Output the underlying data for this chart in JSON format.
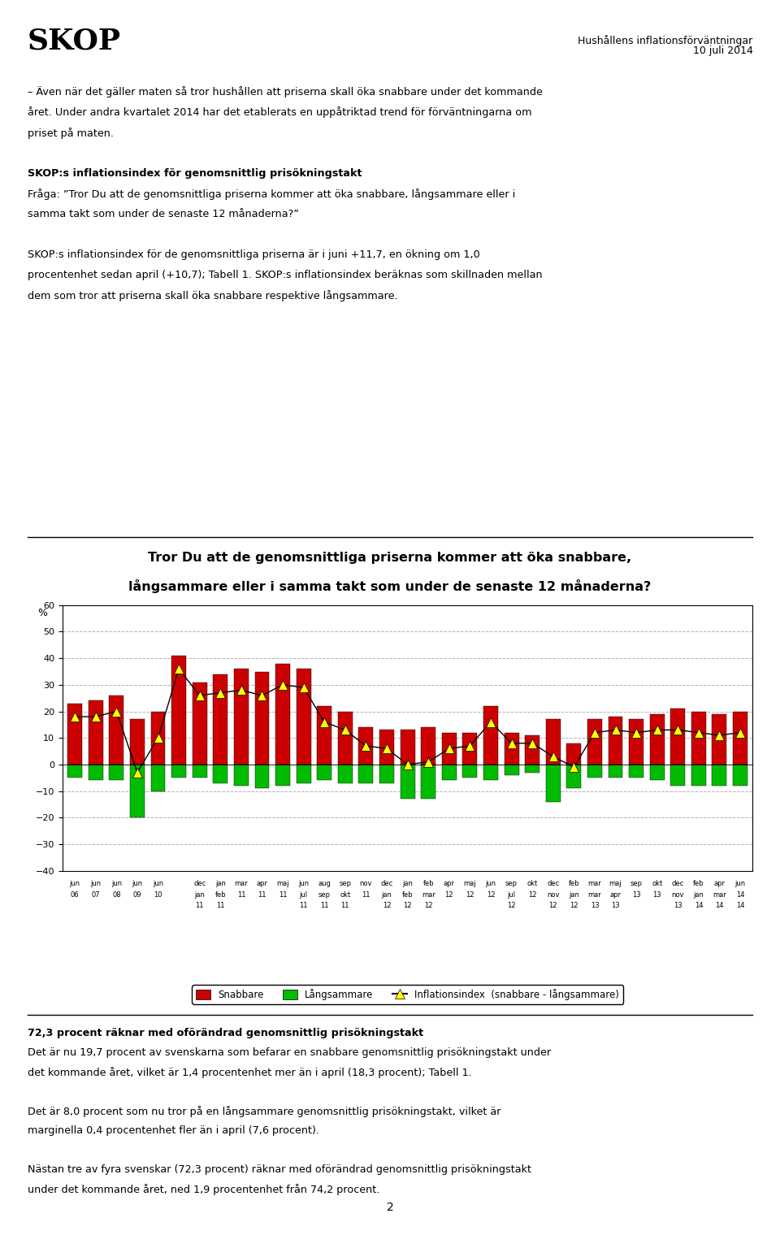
{
  "title_line1": "Tror Du att de genomsnittliga priserna kommer att öka snabbare,",
  "title_line2": "långsammare eller i samma takt som under de senaste 12 månaderna?",
  "header_right1": "Hushållens inflationsförväntningar",
  "header_right2": "10 juli 2014",
  "page_title": "SKOP",
  "legend_snabbare": "Snabbare",
  "legend_langsammare": "Långsammare",
  "legend_index": "Inflationsindex  (snabbare - långsammare)",
  "ylim": [
    -40,
    60
  ],
  "yticks": [
    -40,
    -30,
    -20,
    -10,
    0,
    10,
    20,
    30,
    40,
    50,
    60
  ],
  "snabbare": [
    23,
    24,
    26,
    17,
    20,
    41,
    31,
    34,
    36,
    35,
    38,
    36,
    22,
    20,
    14,
    13,
    13,
    14,
    12,
    12,
    22,
    12,
    11,
    17,
    8,
    17,
    18,
    17,
    19,
    21,
    20,
    19,
    20
  ],
  "langsammare_neg": [
    -5,
    -6,
    -6,
    -20,
    -10,
    -5,
    -5,
    -7,
    -8,
    -9,
    -8,
    -7,
    -6,
    -7,
    -7,
    -7,
    -13,
    -13,
    -6,
    -5,
    -6,
    -4,
    -3,
    -14,
    -9,
    -5,
    -5,
    -5,
    -6,
    -8,
    -8,
    -8,
    -8
  ],
  "inflationsindex": [
    18,
    18,
    20,
    -3,
    10,
    36,
    26,
    27,
    28,
    26,
    30,
    29,
    16,
    13,
    7,
    6,
    0,
    1,
    6,
    7,
    16,
    8,
    8,
    3,
    -1,
    12,
    13,
    12,
    13,
    13,
    12,
    11,
    12
  ],
  "red_color": "#CC0000",
  "green_color": "#00BB00",
  "yellow_color": "#FFFF00",
  "x_row1": [
    "jun",
    "jun",
    "jun",
    "jun",
    "jun",
    "",
    "dec",
    "jan",
    "mar",
    "apr",
    "maj",
    "jun",
    "aug",
    "sep",
    "nov",
    "dec",
    "jan",
    "feb",
    "apr",
    "maj",
    "jun",
    "sep",
    "okt",
    "dec",
    "feb",
    "mar",
    "maj",
    "sep",
    "okt",
    "dec",
    "feb",
    "apr",
    "jun"
  ],
  "x_row2": [
    "06",
    "07",
    "08",
    "09",
    "10",
    "",
    "jan",
    "feb",
    "11",
    "11",
    "11",
    "jul",
    "sep",
    "okt",
    "11",
    "jan",
    "feb",
    "mar",
    "12",
    "12",
    "12",
    "jul",
    "12",
    "nov",
    "jan",
    "mar",
    "apr",
    "13",
    "13",
    "nov",
    "jan",
    "mar",
    "14"
  ],
  "x_row3": [
    "",
    "",
    "",
    "",
    "",
    "",
    "11",
    "11",
    "",
    "",
    "",
    "11",
    "11",
    "11",
    "",
    "12",
    "12",
    "12",
    "",
    "",
    "",
    "12",
    "",
    "12",
    "12",
    "13",
    "13",
    "",
    "",
    "13",
    "14",
    "14",
    "14"
  ]
}
